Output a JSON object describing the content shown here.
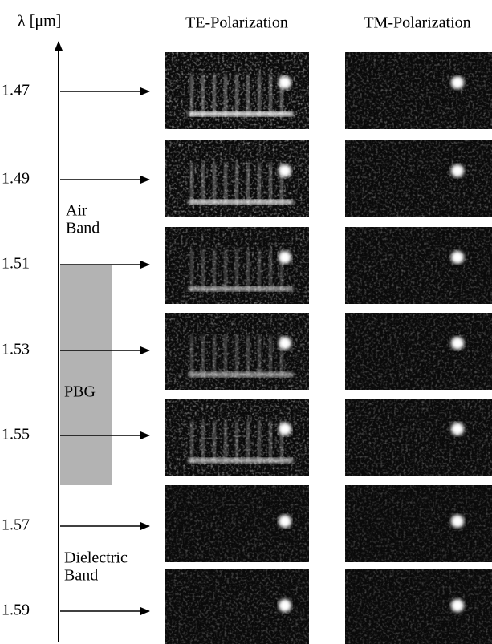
{
  "axis_label": "λ [μm]",
  "columns": [
    "TE-Polarization",
    "TM-Polarization"
  ],
  "wavelengths": [
    "1.47",
    "1.49",
    "1.51",
    "1.53",
    "1.55",
    "1.57",
    "1.59"
  ],
  "air_band": [
    "Air",
    "Band"
  ],
  "pbg": "PBG",
  "dielectric_band": [
    "Dielectric",
    "Band"
  ]
}
